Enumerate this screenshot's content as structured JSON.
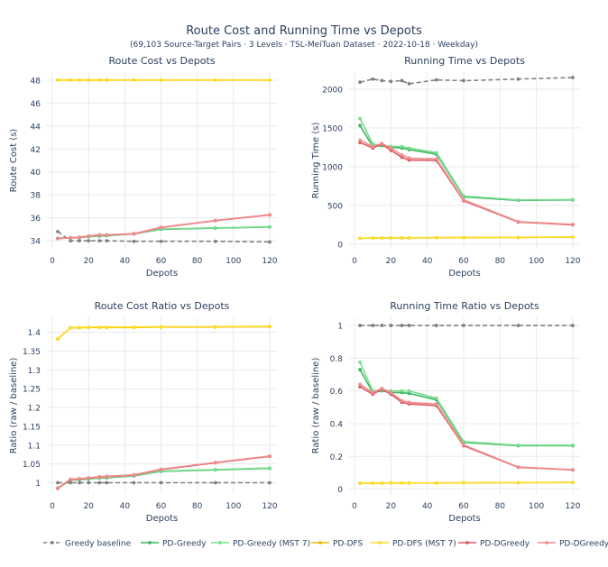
{
  "title": "Route Cost and Running Time vs Depots",
  "subtitle": "(69,103 Source-Target Pairs · 3 Levels · TSL-MeiTuan Dataset · 2022-10-18 · Weekday)",
  "colors": {
    "greedy_baseline": "#808080",
    "pd_greedy": "#3cb464",
    "pd_greedy_mst": "#78dc8c",
    "pd_dfs": "#e6be00",
    "pd_dfs_mst": "#ffdc28",
    "pd_dgreedy": "#dc5a64",
    "pd_dgreedy_mst": "#f08c8c"
  },
  "legend": [
    {
      "name": "Greedy baseline",
      "key": "greedy_baseline",
      "dash": true
    },
    {
      "name": "PD-Greedy",
      "key": "pd_greedy",
      "dash": false
    },
    {
      "name": "PD-Greedy (MST 7)",
      "key": "pd_greedy_mst",
      "dash": false
    },
    {
      "name": "PD-DFS",
      "key": "pd_dfs",
      "dash": false
    },
    {
      "name": "PD-DFS (MST 7)",
      "key": "pd_dfs_mst",
      "dash": false
    },
    {
      "name": "PD-DGreedy",
      "key": "pd_dgreedy",
      "dash": false
    },
    {
      "name": "PD-DGreedy (MST 7)",
      "key": "pd_dgreedy_mst",
      "dash": false
    }
  ],
  "chart_data": [
    {
      "id": "cost",
      "type": "line",
      "title": "Route Cost vs Depots",
      "xlabel": "Depots",
      "ylabel": "Route Cost (s)",
      "xlim": [
        -3,
        124
      ],
      "ylim": [
        33.3,
        48.7
      ],
      "xticks": [
        0,
        20,
        40,
        60,
        80,
        100,
        120
      ],
      "yticks": [
        34,
        36,
        38,
        40,
        42,
        44,
        46,
        48
      ],
      "ytick_labels": [
        "34",
        "36",
        "38",
        "40",
        "42",
        "44",
        "46",
        "48"
      ],
      "x": [
        3,
        10,
        15,
        20,
        26,
        30,
        45,
        60,
        90,
        120
      ],
      "series": [
        {
          "name": "Greedy baseline",
          "key": "greedy_baseline",
          "dash": true,
          "values": [
            34.8,
            34.0,
            34.0,
            34.0,
            34.0,
            34.0,
            33.95,
            33.95,
            33.95,
            33.9
          ]
        },
        {
          "name": "PD-DFS",
          "key": "pd_dfs",
          "dash": false,
          "values": [
            48.0,
            48.0,
            48.0,
            48.0,
            48.0,
            48.0,
            48.0,
            48.0,
            48.0,
            48.0
          ]
        },
        {
          "name": "PD-DFS (MST 7)",
          "key": "pd_dfs_mst",
          "dash": false,
          "values": [
            48.02,
            48.02,
            48.02,
            48.02,
            48.02,
            48.02,
            48.02,
            48.02,
            48.02,
            48.02
          ]
        },
        {
          "name": "PD-Greedy",
          "key": "pd_greedy",
          "dash": false,
          "values": [
            34.2,
            34.25,
            34.28,
            34.35,
            34.4,
            34.45,
            34.6,
            35.0,
            35.1,
            35.2
          ]
        },
        {
          "name": "PD-Greedy (MST 7)",
          "key": "pd_greedy_mst",
          "dash": false,
          "values": [
            34.22,
            34.27,
            34.3,
            34.37,
            34.42,
            34.47,
            34.62,
            35.02,
            35.12,
            35.22
          ]
        },
        {
          "name": "PD-DGreedy",
          "key": "pd_dgreedy",
          "dash": false,
          "values": [
            34.2,
            34.25,
            34.3,
            34.4,
            34.5,
            34.5,
            34.6,
            35.15,
            35.75,
            36.25
          ]
        },
        {
          "name": "PD-DGreedy (MST 7)",
          "key": "pd_dgreedy_mst",
          "dash": false,
          "values": [
            34.22,
            34.27,
            34.32,
            34.42,
            34.52,
            34.52,
            34.62,
            35.17,
            35.77,
            36.27
          ]
        }
      ]
    },
    {
      "id": "time",
      "type": "line",
      "title": "Running Time vs Depots",
      "xlabel": "Depots",
      "ylabel": "Running Time (s)",
      "xlim": [
        -3,
        124
      ],
      "ylim": [
        -60,
        2220
      ],
      "xticks": [
        0,
        20,
        40,
        60,
        80,
        100,
        120
      ],
      "yticks": [
        0,
        500,
        1000,
        1500,
        2000
      ],
      "ytick_labels": [
        "0",
        "500",
        "1000",
        "1500",
        "2000"
      ],
      "x": [
        3,
        10,
        15,
        20,
        26,
        30,
        45,
        60,
        90,
        120
      ],
      "series": [
        {
          "name": "Greedy baseline",
          "key": "greedy_baseline",
          "dash": true,
          "values": [
            2090,
            2130,
            2110,
            2100,
            2110,
            2070,
            2120,
            2110,
            2130,
            2150
          ]
        },
        {
          "name": "PD-DFS",
          "key": "pd_dfs",
          "dash": false,
          "values": [
            75,
            78,
            78,
            80,
            80,
            80,
            82,
            84,
            86,
            90
          ]
        },
        {
          "name": "PD-DFS (MST 7)",
          "key": "pd_dfs_mst",
          "dash": false,
          "values": [
            77,
            80,
            80,
            82,
            82,
            82,
            84,
            86,
            88,
            92
          ]
        },
        {
          "name": "PD-Greedy",
          "key": "pd_greedy",
          "dash": false,
          "values": [
            1530,
            1260,
            1270,
            1250,
            1240,
            1220,
            1160,
            610,
            565,
            570
          ]
        },
        {
          "name": "PD-Greedy (MST 7)",
          "key": "pd_greedy_mst",
          "dash": false,
          "values": [
            1620,
            1290,
            1280,
            1260,
            1260,
            1240,
            1180,
            620,
            570,
            575
          ]
        },
        {
          "name": "PD-DGreedy",
          "key": "pd_dgreedy",
          "dash": false,
          "values": [
            1310,
            1240,
            1290,
            1210,
            1120,
            1085,
            1080,
            560,
            285,
            250
          ]
        },
        {
          "name": "PD-DGreedy (MST 7)",
          "key": "pd_dgreedy_mst",
          "dash": false,
          "values": [
            1340,
            1260,
            1300,
            1240,
            1150,
            1110,
            1100,
            570,
            290,
            255
          ]
        }
      ]
    },
    {
      "id": "cost_ratio",
      "type": "line",
      "title": "Route Cost Ratio vs Depots",
      "xlabel": "Depots",
      "ylabel": "Ratio (raw / baseline)",
      "xlim": [
        -3,
        124
      ],
      "ylim": [
        0.97,
        1.44
      ],
      "xticks": [
        0,
        20,
        40,
        60,
        80,
        100,
        120
      ],
      "yticks": [
        1.0,
        1.05,
        1.1,
        1.15,
        1.2,
        1.25,
        1.3,
        1.35,
        1.4
      ],
      "ytick_labels": [
        "1",
        "1.05",
        "1.1",
        "1.15",
        "1.2",
        "1.25",
        "1.3",
        "1.35",
        "1.4"
      ],
      "x": [
        3,
        10,
        15,
        20,
        26,
        30,
        45,
        60,
        90,
        120
      ],
      "series": [
        {
          "name": "Greedy baseline",
          "key": "greedy_baseline",
          "dash": true,
          "values": [
            1.0,
            1.0,
            1.0,
            1.0,
            1.0,
            1.0,
            1.0,
            1.0,
            1.0,
            1.0
          ]
        },
        {
          "name": "PD-DFS",
          "key": "pd_dfs",
          "dash": false,
          "values": [
            1.382,
            1.412,
            1.412,
            1.413,
            1.413,
            1.413,
            1.413,
            1.414,
            1.414,
            1.415
          ]
        },
        {
          "name": "PD-DFS (MST 7)",
          "key": "pd_dfs_mst",
          "dash": false,
          "values": [
            1.383,
            1.413,
            1.413,
            1.414,
            1.414,
            1.414,
            1.414,
            1.415,
            1.415,
            1.416
          ]
        },
        {
          "name": "PD-Greedy",
          "key": "pd_greedy",
          "dash": false,
          "values": [
            0.985,
            1.007,
            1.008,
            1.01,
            1.012,
            1.013,
            1.018,
            1.03,
            1.034,
            1.038
          ]
        },
        {
          "name": "PD-Greedy (MST 7)",
          "key": "pd_greedy_mst",
          "dash": false,
          "values": [
            0.986,
            1.008,
            1.009,
            1.011,
            1.013,
            1.014,
            1.019,
            1.031,
            1.035,
            1.039
          ]
        },
        {
          "name": "PD-DGreedy",
          "key": "pd_dgreedy",
          "dash": false,
          "values": [
            0.985,
            1.008,
            1.01,
            1.012,
            1.015,
            1.016,
            1.02,
            1.035,
            1.053,
            1.07
          ]
        },
        {
          "name": "PD-DGreedy (MST 7)",
          "key": "pd_dgreedy_mst",
          "dash": false,
          "values": [
            0.986,
            1.009,
            1.011,
            1.013,
            1.016,
            1.017,
            1.021,
            1.036,
            1.054,
            1.071
          ]
        }
      ]
    },
    {
      "id": "time_ratio",
      "type": "line",
      "title": "Running Time Ratio vs Depots",
      "xlabel": "Depots",
      "ylabel": "Ratio (raw / baseline)",
      "xlim": [
        -3,
        124
      ],
      "ylim": [
        -0.03,
        1.05
      ],
      "xticks": [
        0,
        20,
        40,
        60,
        80,
        100,
        120
      ],
      "yticks": [
        0,
        0.2,
        0.4,
        0.6,
        0.8,
        1.0
      ],
      "ytick_labels": [
        "0",
        "0.2",
        "0.4",
        "0.6",
        "0.8",
        "1"
      ],
      "x": [
        3,
        10,
        15,
        20,
        26,
        30,
        45,
        60,
        90,
        120
      ],
      "series": [
        {
          "name": "Greedy baseline",
          "key": "greedy_baseline",
          "dash": true,
          "values": [
            1.0,
            1.0,
            1.0,
            1.0,
            1.0,
            1.0,
            1.0,
            1.0,
            1.0,
            1.0
          ]
        },
        {
          "name": "PD-DFS",
          "key": "pd_dfs",
          "dash": false,
          "values": [
            0.036,
            0.036,
            0.036,
            0.037,
            0.037,
            0.037,
            0.037,
            0.038,
            0.039,
            0.04
          ]
        },
        {
          "name": "PD-DFS (MST 7)",
          "key": "pd_dfs_mst",
          "dash": false,
          "values": [
            0.037,
            0.037,
            0.037,
            0.038,
            0.038,
            0.038,
            0.038,
            0.039,
            0.04,
            0.041
          ]
        },
        {
          "name": "PD-Greedy",
          "key": "pd_greedy",
          "dash": false,
          "values": [
            0.73,
            0.59,
            0.6,
            0.59,
            0.59,
            0.585,
            0.545,
            0.285,
            0.265,
            0.265
          ]
        },
        {
          "name": "PD-Greedy (MST 7)",
          "key": "pd_greedy_mst",
          "dash": false,
          "values": [
            0.775,
            0.6,
            0.605,
            0.6,
            0.6,
            0.6,
            0.555,
            0.29,
            0.268,
            0.268
          ]
        },
        {
          "name": "PD-DGreedy",
          "key": "pd_dgreedy",
          "dash": false,
          "values": [
            0.625,
            0.58,
            0.61,
            0.58,
            0.53,
            0.52,
            0.51,
            0.265,
            0.133,
            0.117
          ]
        },
        {
          "name": "PD-DGreedy (MST 7)",
          "key": "pd_dgreedy_mst",
          "dash": false,
          "values": [
            0.64,
            0.59,
            0.615,
            0.59,
            0.54,
            0.53,
            0.52,
            0.27,
            0.135,
            0.118
          ]
        }
      ]
    }
  ]
}
